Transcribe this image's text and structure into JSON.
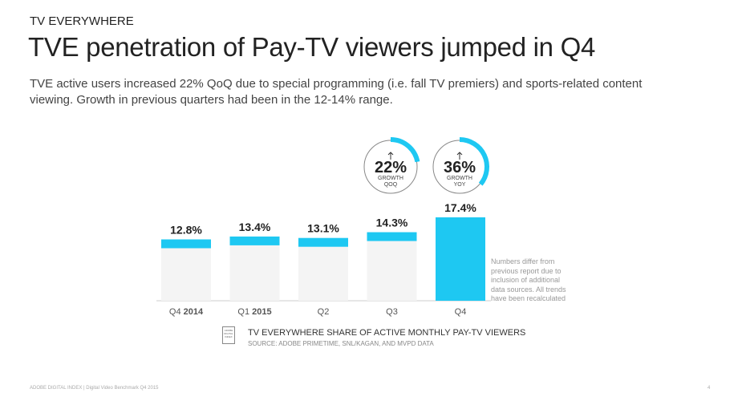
{
  "header": {
    "kicker": "TV EVERYWHERE",
    "title": "TVE penetration of Pay-TV viewers jumped in Q4",
    "subtitle": "TVE active users increased 22% QoQ due to special programming (i.e. fall TV premiers) and sports-related content viewing. Growth in previous quarters had been in the 12-14% range."
  },
  "chart_data": {
    "type": "bar",
    "title": "TV EVERYWHERE SHARE OF ACTIVE MONTHLY PAY-TV VIEWERS",
    "source": "SOURCE: ADOBE PRIMETIME, SNL/KAGAN, AND MVPD DATA",
    "categories": [
      {
        "q": "Q4",
        "y": "2014"
      },
      {
        "q": "Q1",
        "y": "2015"
      },
      {
        "q": "Q2",
        "y": ""
      },
      {
        "q": "Q3",
        "y": ""
      },
      {
        "q": "Q4",
        "y": ""
      }
    ],
    "values": [
      12.8,
      13.4,
      13.1,
      14.3,
      17.4
    ],
    "labels": [
      "12.8%",
      "13.4%",
      "13.1%",
      "14.3%",
      "17.4%"
    ],
    "ylim": [
      0,
      17.4
    ],
    "growth": [
      {
        "value": "22%",
        "line1": "GROWTH",
        "line2": "QOQ",
        "fraction": 0.22
      },
      {
        "value": "36%",
        "line1": "GROWTH",
        "line2": "YOY",
        "fraction": 0.36
      }
    ],
    "note": "Numbers differ from previous report due to inclusion of additional data sources. All trends have been recalculated",
    "colors": {
      "accent": "#1ec8f2",
      "bg": "#f4f4f4",
      "circle": "#888888"
    }
  },
  "legend_icon": "ADOBE DIGITAL INDEX",
  "footer": {
    "text": "ADOBE DIGITAL INDEX | Digital Video Benchmark Q4 2015",
    "page": "4"
  }
}
